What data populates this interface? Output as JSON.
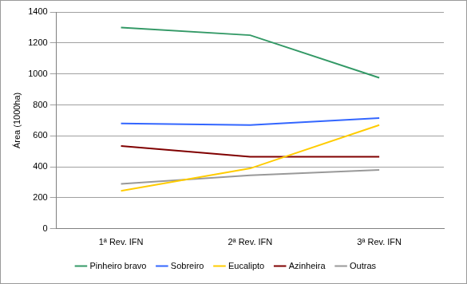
{
  "chart_data": {
    "type": "line",
    "y_label": "Área (1000ha)",
    "categories": [
      "1ª Rev. IFN",
      "2ª Rev. IFN",
      "3ª Rev. IFN"
    ],
    "series": [
      {
        "name": "Pinheiro bravo",
        "color": "#339966",
        "values": [
          1300,
          1250,
          975
        ]
      },
      {
        "name": "Sobreiro",
        "color": "#3366ff",
        "values": [
          680,
          670,
          715
        ]
      },
      {
        "name": "Eucalipto",
        "color": "#ffcc00",
        "values": [
          245,
          390,
          670
        ]
      },
      {
        "name": "Azinheira",
        "color": "#800000",
        "values": [
          535,
          465,
          465
        ]
      },
      {
        "name": "Outras",
        "color": "#999999",
        "values": [
          290,
          345,
          380
        ]
      }
    ],
    "ylim": [
      0,
      1400
    ],
    "yticks": [
      0,
      200,
      400,
      600,
      800,
      1000,
      1200,
      1400
    ],
    "grid": true,
    "legend": "bottom",
    "marker": "none"
  }
}
